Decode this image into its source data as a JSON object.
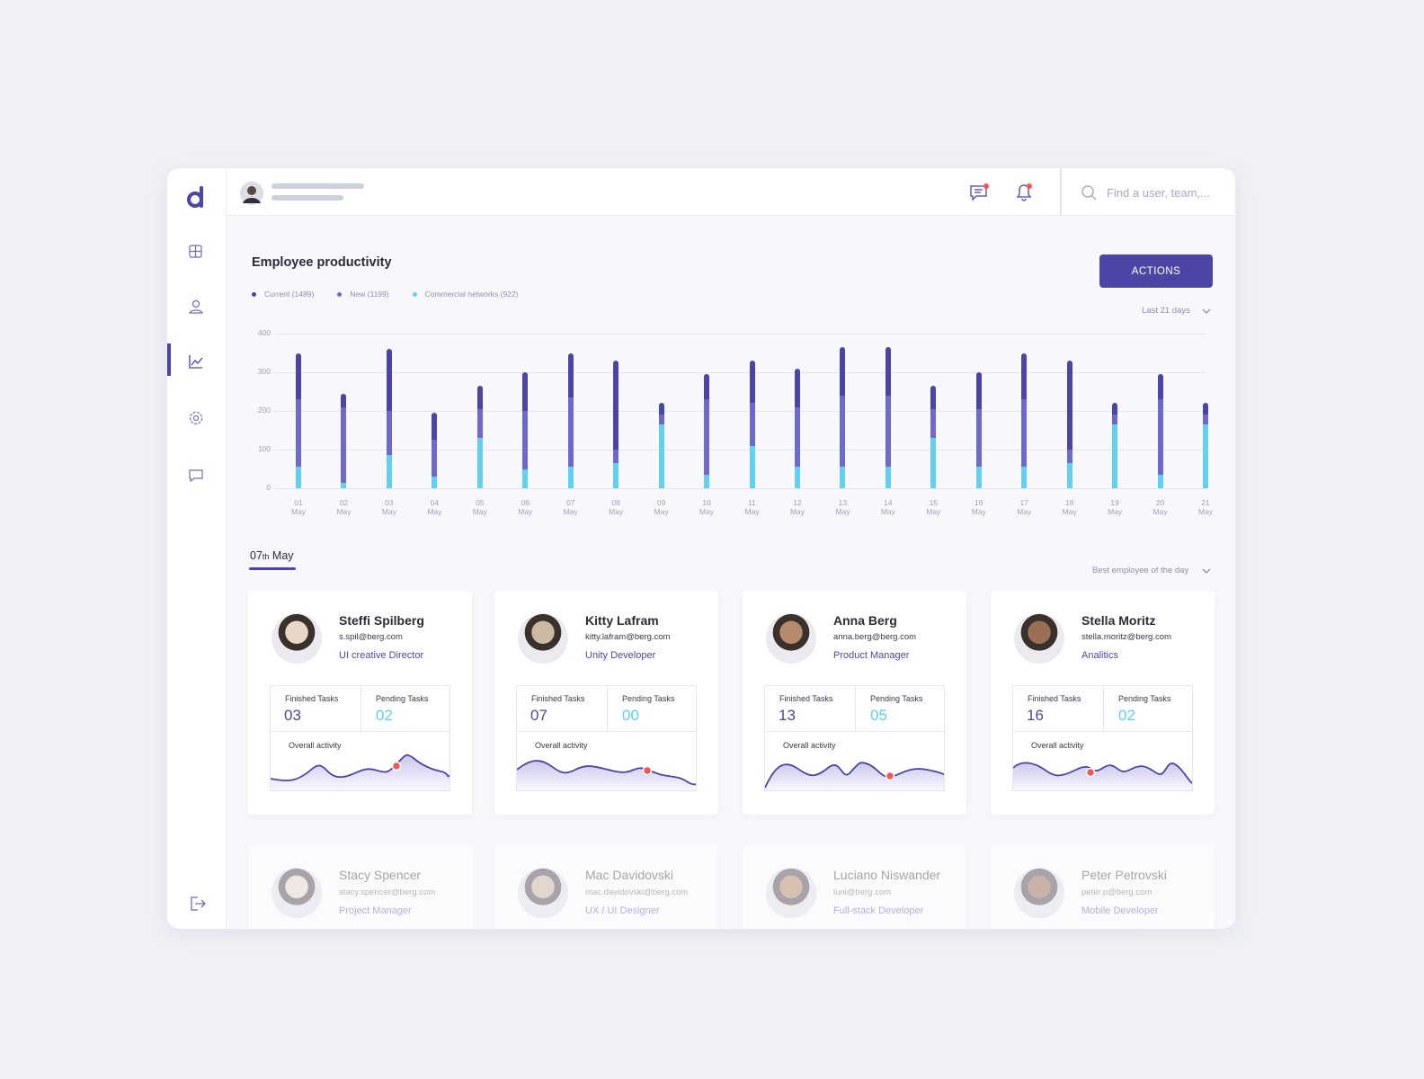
{
  "header": {
    "search_placeholder": "Find a user, team,..."
  },
  "chart_data": {
    "type": "bar",
    "stacked": true,
    "title": "Employee productivity",
    "range_selector": "Last 21 days",
    "categories": [
      "01 May",
      "02 May",
      "03 May",
      "04 May",
      "05 May",
      "06 May",
      "07 May",
      "08 May",
      "09 May",
      "10 May",
      "11 May",
      "12 May",
      "13 May",
      "14 May",
      "15 May",
      "16 May",
      "17 May",
      "18 May",
      "19 May",
      "20 May",
      "21 May"
    ],
    "series": [
      {
        "name": "Current (1489)",
        "color": "#4b45a5",
        "values": [
          120,
          35,
          160,
          70,
          60,
          100,
          115,
          230,
          30,
          65,
          110,
          100,
          125,
          125,
          60,
          95,
          120,
          230,
          30,
          65,
          30
        ]
      },
      {
        "name": "New (1199)",
        "color": "#6e69cc",
        "values": [
          175,
          195,
          115,
          95,
          75,
          150,
          180,
          35,
          25,
          195,
          110,
          155,
          185,
          185,
          75,
          150,
          175,
          35,
          25,
          195,
          25
        ]
      },
      {
        "name": "Commercial networks (922)",
        "color": "#62d0f0",
        "values": [
          55,
          15,
          85,
          30,
          130,
          50,
          55,
          65,
          165,
          35,
          110,
          55,
          55,
          55,
          130,
          55,
          55,
          65,
          165,
          35,
          165
        ]
      }
    ],
    "ylim": [
      0,
      400
    ],
    "yticks": [
      0,
      100,
      200,
      300,
      400
    ],
    "grid": true
  },
  "actions_button": "ACTIONS",
  "date_tab": {
    "day": "07",
    "suffix": "th",
    "month": "May"
  },
  "best_selector": "Best employee of the day",
  "employees": [
    {
      "name": "Steffi Spilberg",
      "email": "s.spil@berg.com",
      "role": "UI creative Director",
      "finished_label": "Finished Tasks",
      "finished": "03",
      "pending_label": "Pending Tasks",
      "pending": "02",
      "activity_label": "Overall activity"
    },
    {
      "name": "Kitty Lafram",
      "email": "kitty.lafram@berg.com",
      "role": "Unity Developer",
      "finished_label": "Finished Tasks",
      "finished": "07",
      "pending_label": "Pending Tasks",
      "pending": "00",
      "activity_label": "Overall activity"
    },
    {
      "name": "Anna Berg",
      "email": "anna.berg@berg.com",
      "role": "Product Manager",
      "finished_label": "Finished Tasks",
      "finished": "13",
      "pending_label": "Pending Tasks",
      "pending": "05",
      "activity_label": "Overall activity"
    },
    {
      "name": "Stella Moritz",
      "email": "stella.moritz@berg.com",
      "role": "Analitics",
      "finished_label": "Finished Tasks",
      "finished": "16",
      "pending_label": "Pending Tasks",
      "pending": "02",
      "activity_label": "Overall activity"
    }
  ],
  "more_employees": [
    {
      "name": "Stacy Spencer",
      "email": "stacy.spencer@berg.com",
      "role": "Project Manager"
    },
    {
      "name": "Mac Davidovski",
      "email": "mac.davidovski@berg.com",
      "role": "UX / UI Designer"
    },
    {
      "name": "Luciano Niswander",
      "email": "luni@berg.com",
      "role": "Full-stack Developer"
    },
    {
      "name": "Peter Petrovski",
      "email": "peter.p@berg.com",
      "role": "Mobile Developer"
    }
  ]
}
